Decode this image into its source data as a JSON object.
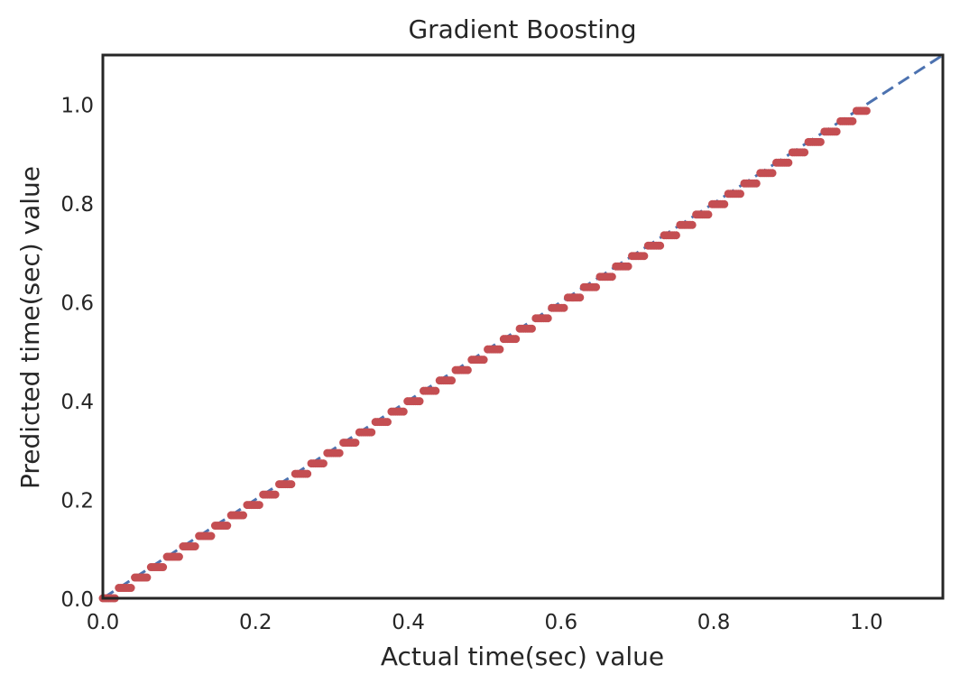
{
  "chart_data": {
    "type": "scatter",
    "title": "Gradient Boosting",
    "xlabel": "Actual time(sec) value",
    "ylabel": "Predicted time(sec) value",
    "xlim": [
      0.0,
      1.1
    ],
    "ylim": [
      0.0,
      1.1
    ],
    "xticks": [
      "0.0",
      "0.2",
      "0.4",
      "0.6",
      "0.8",
      "1.0"
    ],
    "yticks": [
      "0.0",
      "0.2",
      "0.4",
      "0.6",
      "0.8",
      "1.0"
    ],
    "grid": false,
    "reference_line": {
      "style": "dashed",
      "from": [
        0.0,
        0.0
      ],
      "to": [
        1.1,
        1.1
      ],
      "color": "#4c72b0"
    },
    "series": [
      {
        "marker_color": "#c44e52",
        "note_of_points": "predictions lie on y = x from 0.0 to 1.0, in short steps of ~0.02",
        "x_range": [
          0.0,
          1.0
        ],
        "step": 0.021
      }
    ]
  }
}
